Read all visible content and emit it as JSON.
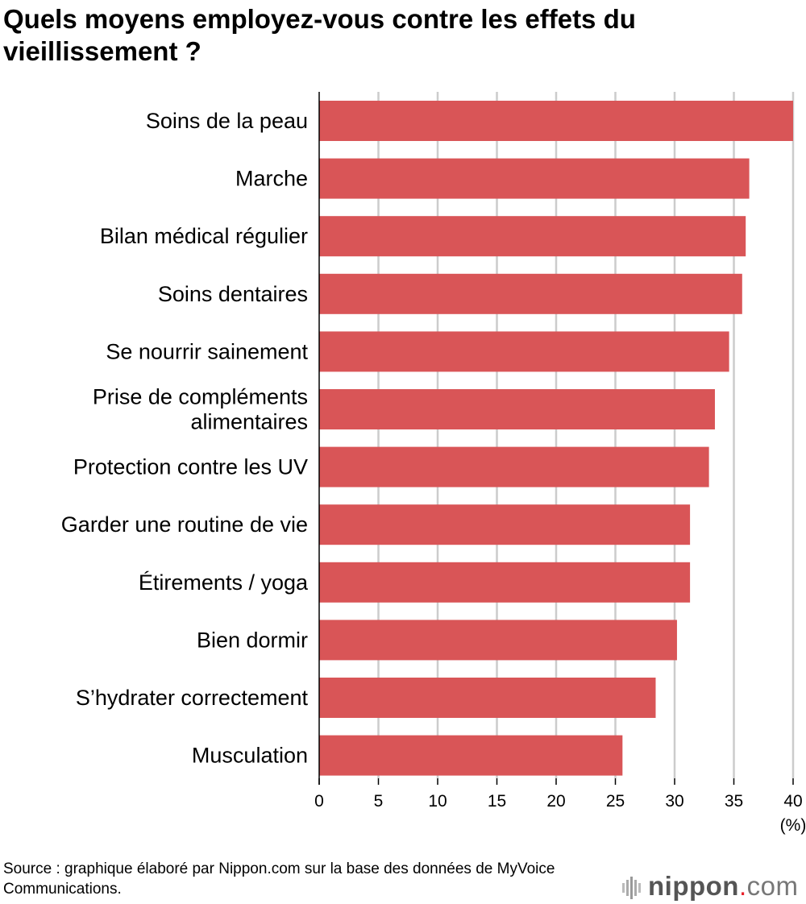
{
  "title": "Quels moyens employez-vous contre les effets du vieillissement ?",
  "source": "Source : graphique élaboré par Nippon.com sur la base des données de MyVoice Communications.",
  "logo": {
    "text": "nippon.com",
    "name": "nippon",
    "dot": ".",
    "tld": "com"
  },
  "colors": {
    "bar": "#d95557",
    "grid": "#cccccc",
    "logo_dot": "#e8202a"
  },
  "chart_data": {
    "type": "bar",
    "orientation": "horizontal",
    "categories": [
      "Soins de la peau",
      "Marche",
      "Bilan médical régulier",
      "Soins dentaires",
      "Se nourrir sainement",
      "Prise de compléments\nalimentaires",
      "Protection contre les UV",
      "Garder une routine de vie",
      "Étirements / yoga",
      "Bien dormir",
      "S’hydrater correctement",
      "Musculation"
    ],
    "values": [
      40.0,
      36.3,
      36.0,
      35.7,
      34.6,
      33.4,
      32.9,
      31.3,
      31.3,
      30.2,
      28.4,
      25.6
    ],
    "xlim": [
      0,
      40
    ],
    "xticks": [
      0,
      5,
      10,
      15,
      20,
      25,
      30,
      35,
      40
    ],
    "xlabel": "(%)",
    "grid": "vertical"
  }
}
